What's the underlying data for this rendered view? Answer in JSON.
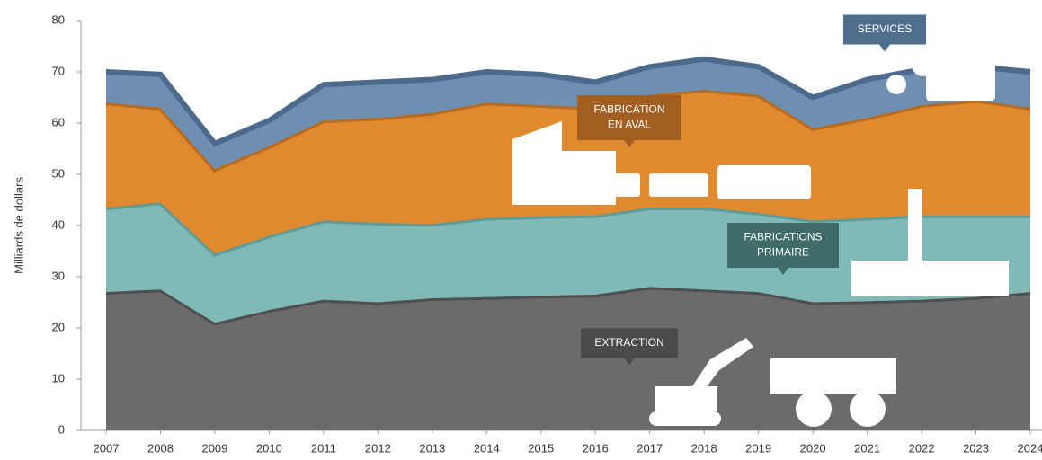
{
  "chart_data": {
    "type": "stacked-area",
    "y_label": "Milliards de dollars",
    "x": [
      2007,
      2008,
      2009,
      2010,
      2011,
      2012,
      2013,
      2014,
      2015,
      2016,
      2017,
      2018,
      2019,
      2020,
      2021,
      2022,
      2023,
      2024
    ],
    "xlim": [
      2007,
      2024
    ],
    "xticks": [
      2007,
      2008,
      2009,
      2010,
      2011,
      2012,
      2013,
      2014,
      2015,
      2016,
      2017,
      2018,
      2019,
      2020,
      2021,
      2022,
      2023,
      2024
    ],
    "ylim": [
      0,
      80
    ],
    "yticks": [
      0,
      10,
      20,
      30,
      40,
      50,
      60,
      70,
      80
    ],
    "series": [
      {
        "color": "#6b6b6b",
        "edge": "#4f4f4f",
        "values": [
          27,
          27.5,
          21,
          23.5,
          25.5,
          25,
          25.8,
          26,
          26.3,
          26.5,
          28,
          27.5,
          27,
          25,
          25.2,
          25.5,
          26,
          27
        ]
      },
      {
        "color": "#7fbab6",
        "edge": "#5f9c98",
        "values": [
          16.5,
          17,
          13.5,
          14.5,
          15.5,
          15.5,
          14.5,
          15.5,
          15.5,
          15.5,
          15.5,
          16,
          15.5,
          16,
          16.3,
          16.5,
          16,
          15
        ]
      },
      {
        "color": "#e08a2f",
        "edge": "#b86a1e",
        "values": [
          20.5,
          18.5,
          16.5,
          17.5,
          19.5,
          20.5,
          21.7,
          22.5,
          21.7,
          21,
          22,
          23,
          23,
          18,
          19.5,
          21.5,
          22.5,
          21
        ]
      },
      {
        "color": "#6e8fb0",
        "edge": "#4c6a8c",
        "values": [
          6,
          6.5,
          5,
          5,
          7,
          7,
          6.5,
          6,
          6,
          5,
          5.5,
          6,
          5.5,
          6,
          7.5,
          7,
          6.5,
          7
        ]
      }
    ],
    "annotations": [
      {
        "lines": [
          "SERVICES"
        ],
        "color": "#4d6e8c"
      },
      {
        "lines": [
          "FABRICATION",
          "EN AVAL"
        ],
        "color": "#a35f22"
      },
      {
        "lines": [
          "FABRICATIONS",
          "PRIMAIRE"
        ],
        "color": "#3f6b68"
      },
      {
        "lines": [
          "EXTRACTION"
        ],
        "color": "#4a4a4a"
      }
    ]
  }
}
